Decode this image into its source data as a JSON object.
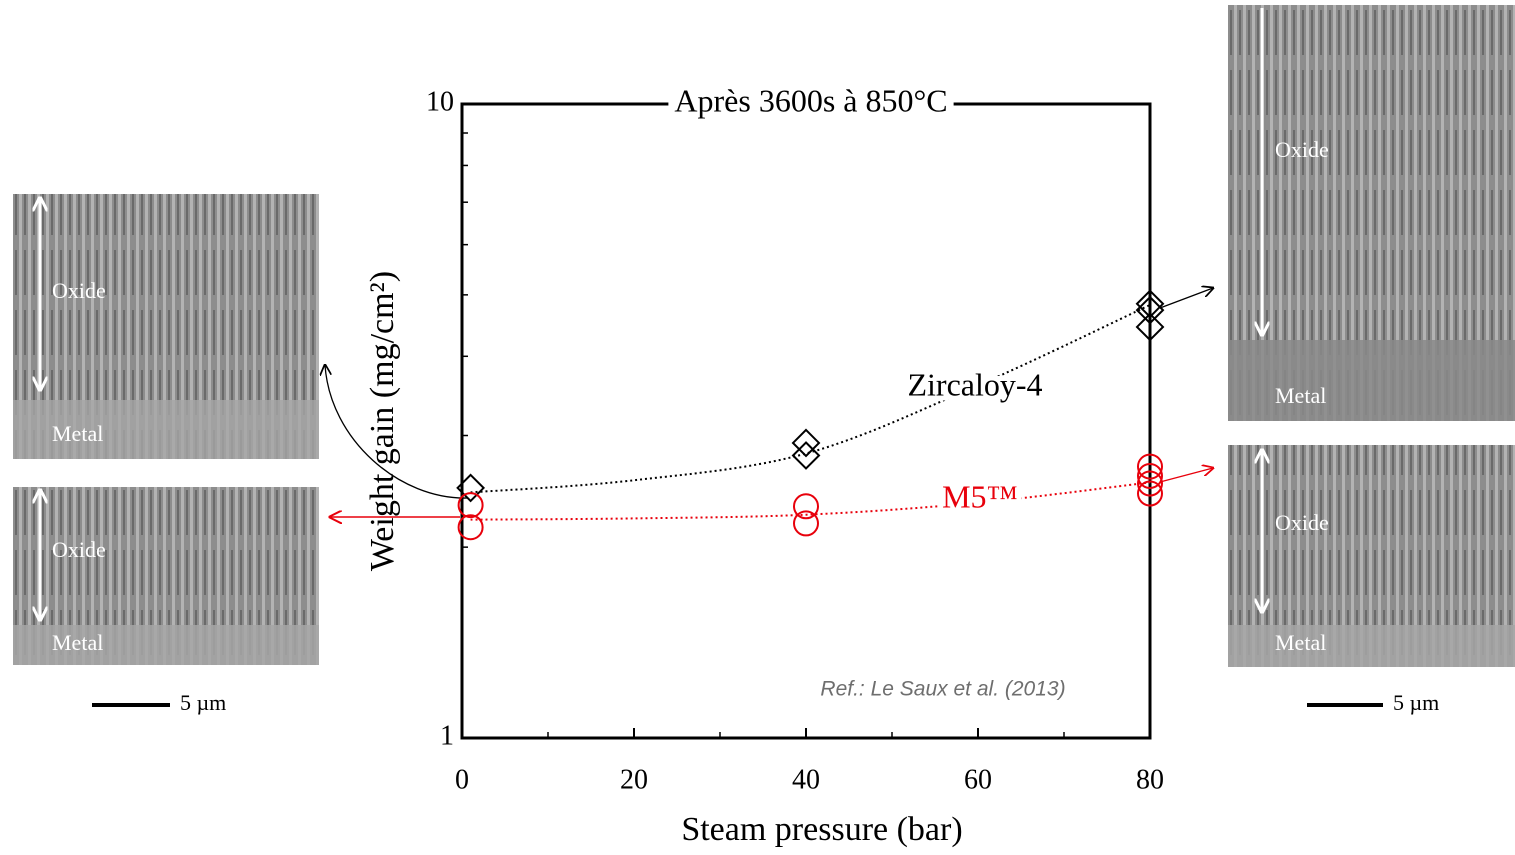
{
  "chart_data": {
    "type": "scatter",
    "title": "Après 3600s à 850°C",
    "x_label": "Steam pressure (bar)",
    "y_label": "Weight gain (mg/cm²)",
    "xlim": [
      0,
      80
    ],
    "xticks": [
      0,
      20,
      40,
      60,
      80
    ],
    "xminor": [
      10,
      30,
      50,
      70
    ],
    "ylim": [
      1,
      10
    ],
    "yticks": [
      1,
      10
    ],
    "yminor": [
      2,
      3,
      4,
      5,
      6,
      7,
      8,
      9
    ],
    "log_y": true,
    "series": [
      {
        "name": "Zircaloy-4",
        "color": "#000000",
        "marker": "diamond",
        "x": [
          1,
          40,
          40,
          80,
          80,
          80
        ],
        "values": [
          2.48,
          2.92,
          2.79,
          4.84,
          4.73,
          4.45
        ],
        "trend": {
          "x": [
            1,
            20,
            40,
            60,
            80
          ],
          "values": [
            2.44,
            2.55,
            2.81,
            3.6,
            4.82
          ]
        }
      },
      {
        "name": "M5™",
        "color": "#e8000b",
        "marker": "circle",
        "x": [
          1,
          1,
          40,
          40,
          80,
          80,
          80,
          80
        ],
        "values": [
          2.33,
          2.15,
          2.32,
          2.18,
          2.68,
          2.59,
          2.52,
          2.43
        ],
        "trend": {
          "x": [
            1,
            20,
            40,
            60,
            80
          ],
          "values": [
            2.21,
            2.22,
            2.25,
            2.35,
            2.53
          ]
        }
      }
    ],
    "annotation": "Ref.: Le Saux et al. (2013)"
  },
  "micrographs": [
    {
      "oxide": "Oxide",
      "metal": "Metal"
    },
    {
      "oxide": "Oxide",
      "metal": "Metal"
    },
    {
      "oxide": "Oxide",
      "metal": "Metal"
    },
    {
      "oxide": "Oxide",
      "metal": "Metal"
    }
  ],
  "scale_bars": [
    "5 µm",
    "5 µm"
  ]
}
